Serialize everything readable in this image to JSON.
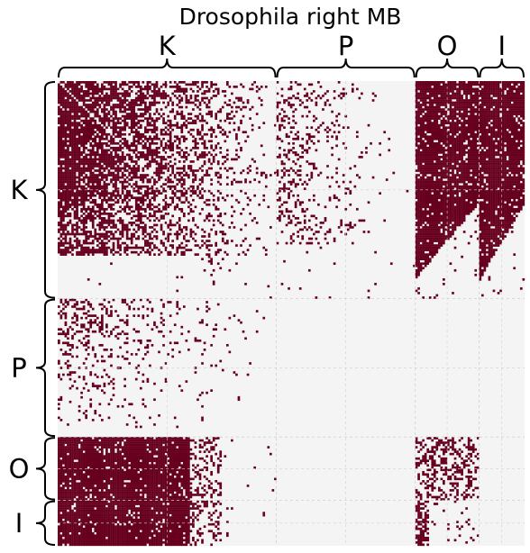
{
  "chart_data": {
    "type": "heatmap",
    "title": "Drosophila right MB",
    "blocks": [
      {
        "label": "K",
        "size": 96
      },
      {
        "label": "P",
        "size": 61
      },
      {
        "label": "O",
        "size": 28
      },
      {
        "label": "I",
        "size": 20
      }
    ],
    "values": "binary adjacency (1 = connection present, 0 = absent)",
    "block_density": [
      [
        0.58,
        0.12,
        0.8,
        0.8
      ],
      [
        0.1,
        0.0,
        0.0,
        0.0
      ],
      [
        0.9,
        0.0,
        0.35,
        0.0
      ],
      [
        0.9,
        0.0,
        0.25,
        0.0
      ]
    ],
    "colors": {
      "present": "#67001f",
      "absent": "#f4f4f4",
      "grid": "#d0d0d0",
      "text": "#000000"
    },
    "grid": true
  }
}
